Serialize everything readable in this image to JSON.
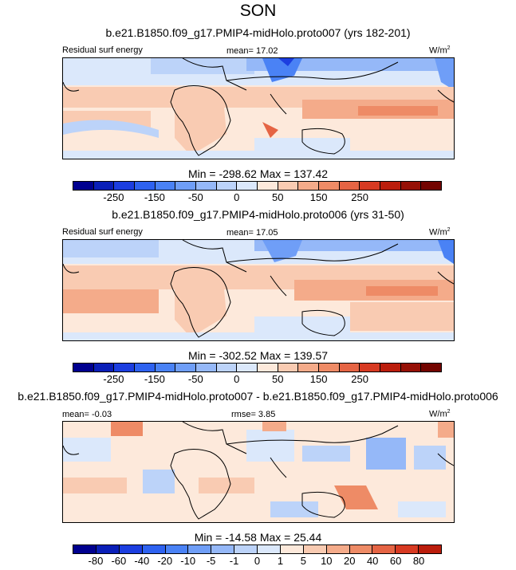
{
  "figure_title": "SON",
  "units_base": "W/m",
  "units_exp": "2",
  "chart_data": [
    {
      "type": "heatmap",
      "title": "b.e21.B1850.f09_g17.PMIP4-midHolo.proto007 (yrs 182-201)",
      "left_label": "Residual surf energy",
      "center_label": "mean=  17.02",
      "minmax": "Min = -298.62 Max = 137.42",
      "colorbar_levels": [
        "-250",
        "-150",
        "-50",
        "0",
        "50",
        "150",
        "250"
      ],
      "palette": [
        "#00008f",
        "#0a1fb8",
        "#1c3ee0",
        "#2e62f0",
        "#4a82f5",
        "#6f9ef7",
        "#95b8f8",
        "#bcd3f9",
        "#dbe8fb",
        "#fde9db",
        "#f9cbb2",
        "#f4ab8a",
        "#ee8b66",
        "#e56444",
        "#d73a22",
        "#bb1d0c",
        "#961006",
        "#730400"
      ]
    },
    {
      "type": "heatmap",
      "title": "b.e21.B1850.f09_g17.PMIP4-midHolo.proto006 (yrs 31-50)",
      "left_label": "Residual surf energy",
      "center_label": "mean=  17.05",
      "minmax": "Min = -302.52 Max = 139.57",
      "colorbar_levels": [
        "-250",
        "-150",
        "-50",
        "0",
        "50",
        "150",
        "250"
      ],
      "palette": [
        "#00008f",
        "#0a1fb8",
        "#1c3ee0",
        "#2e62f0",
        "#4a82f5",
        "#6f9ef7",
        "#95b8f8",
        "#bcd3f9",
        "#dbe8fb",
        "#fde9db",
        "#f9cbb2",
        "#f4ab8a",
        "#ee8b66",
        "#e56444",
        "#d73a22",
        "#bb1d0c",
        "#961006",
        "#730400"
      ]
    },
    {
      "type": "heatmap",
      "title": "b.e21.B1850.f09_g17.PMIP4-midHolo.proto007 - b.e21.B1850.f09_g17.PMIP4-midHolo.proto006",
      "left_label": "mean=  -0.03",
      "center_label": "rmse=   3.85",
      "minmax": "Min = -14.58 Max =  25.44",
      "colorbar_levels": [
        "-80",
        "-60",
        "-40",
        "-20",
        "-10",
        "-5",
        "-1",
        "0",
        "1",
        "5",
        "10",
        "20",
        "40",
        "60",
        "80"
      ],
      "palette": [
        "#00008f",
        "#0a1fb8",
        "#1c3ee0",
        "#2e62f0",
        "#4a82f5",
        "#6f9ef7",
        "#95b8f8",
        "#bcd3f9",
        "#dbe8fb",
        "#fde9db",
        "#f9cbb2",
        "#f4ab8a",
        "#ee8b66",
        "#e56444",
        "#d73a22",
        "#bb1d0c"
      ]
    }
  ]
}
